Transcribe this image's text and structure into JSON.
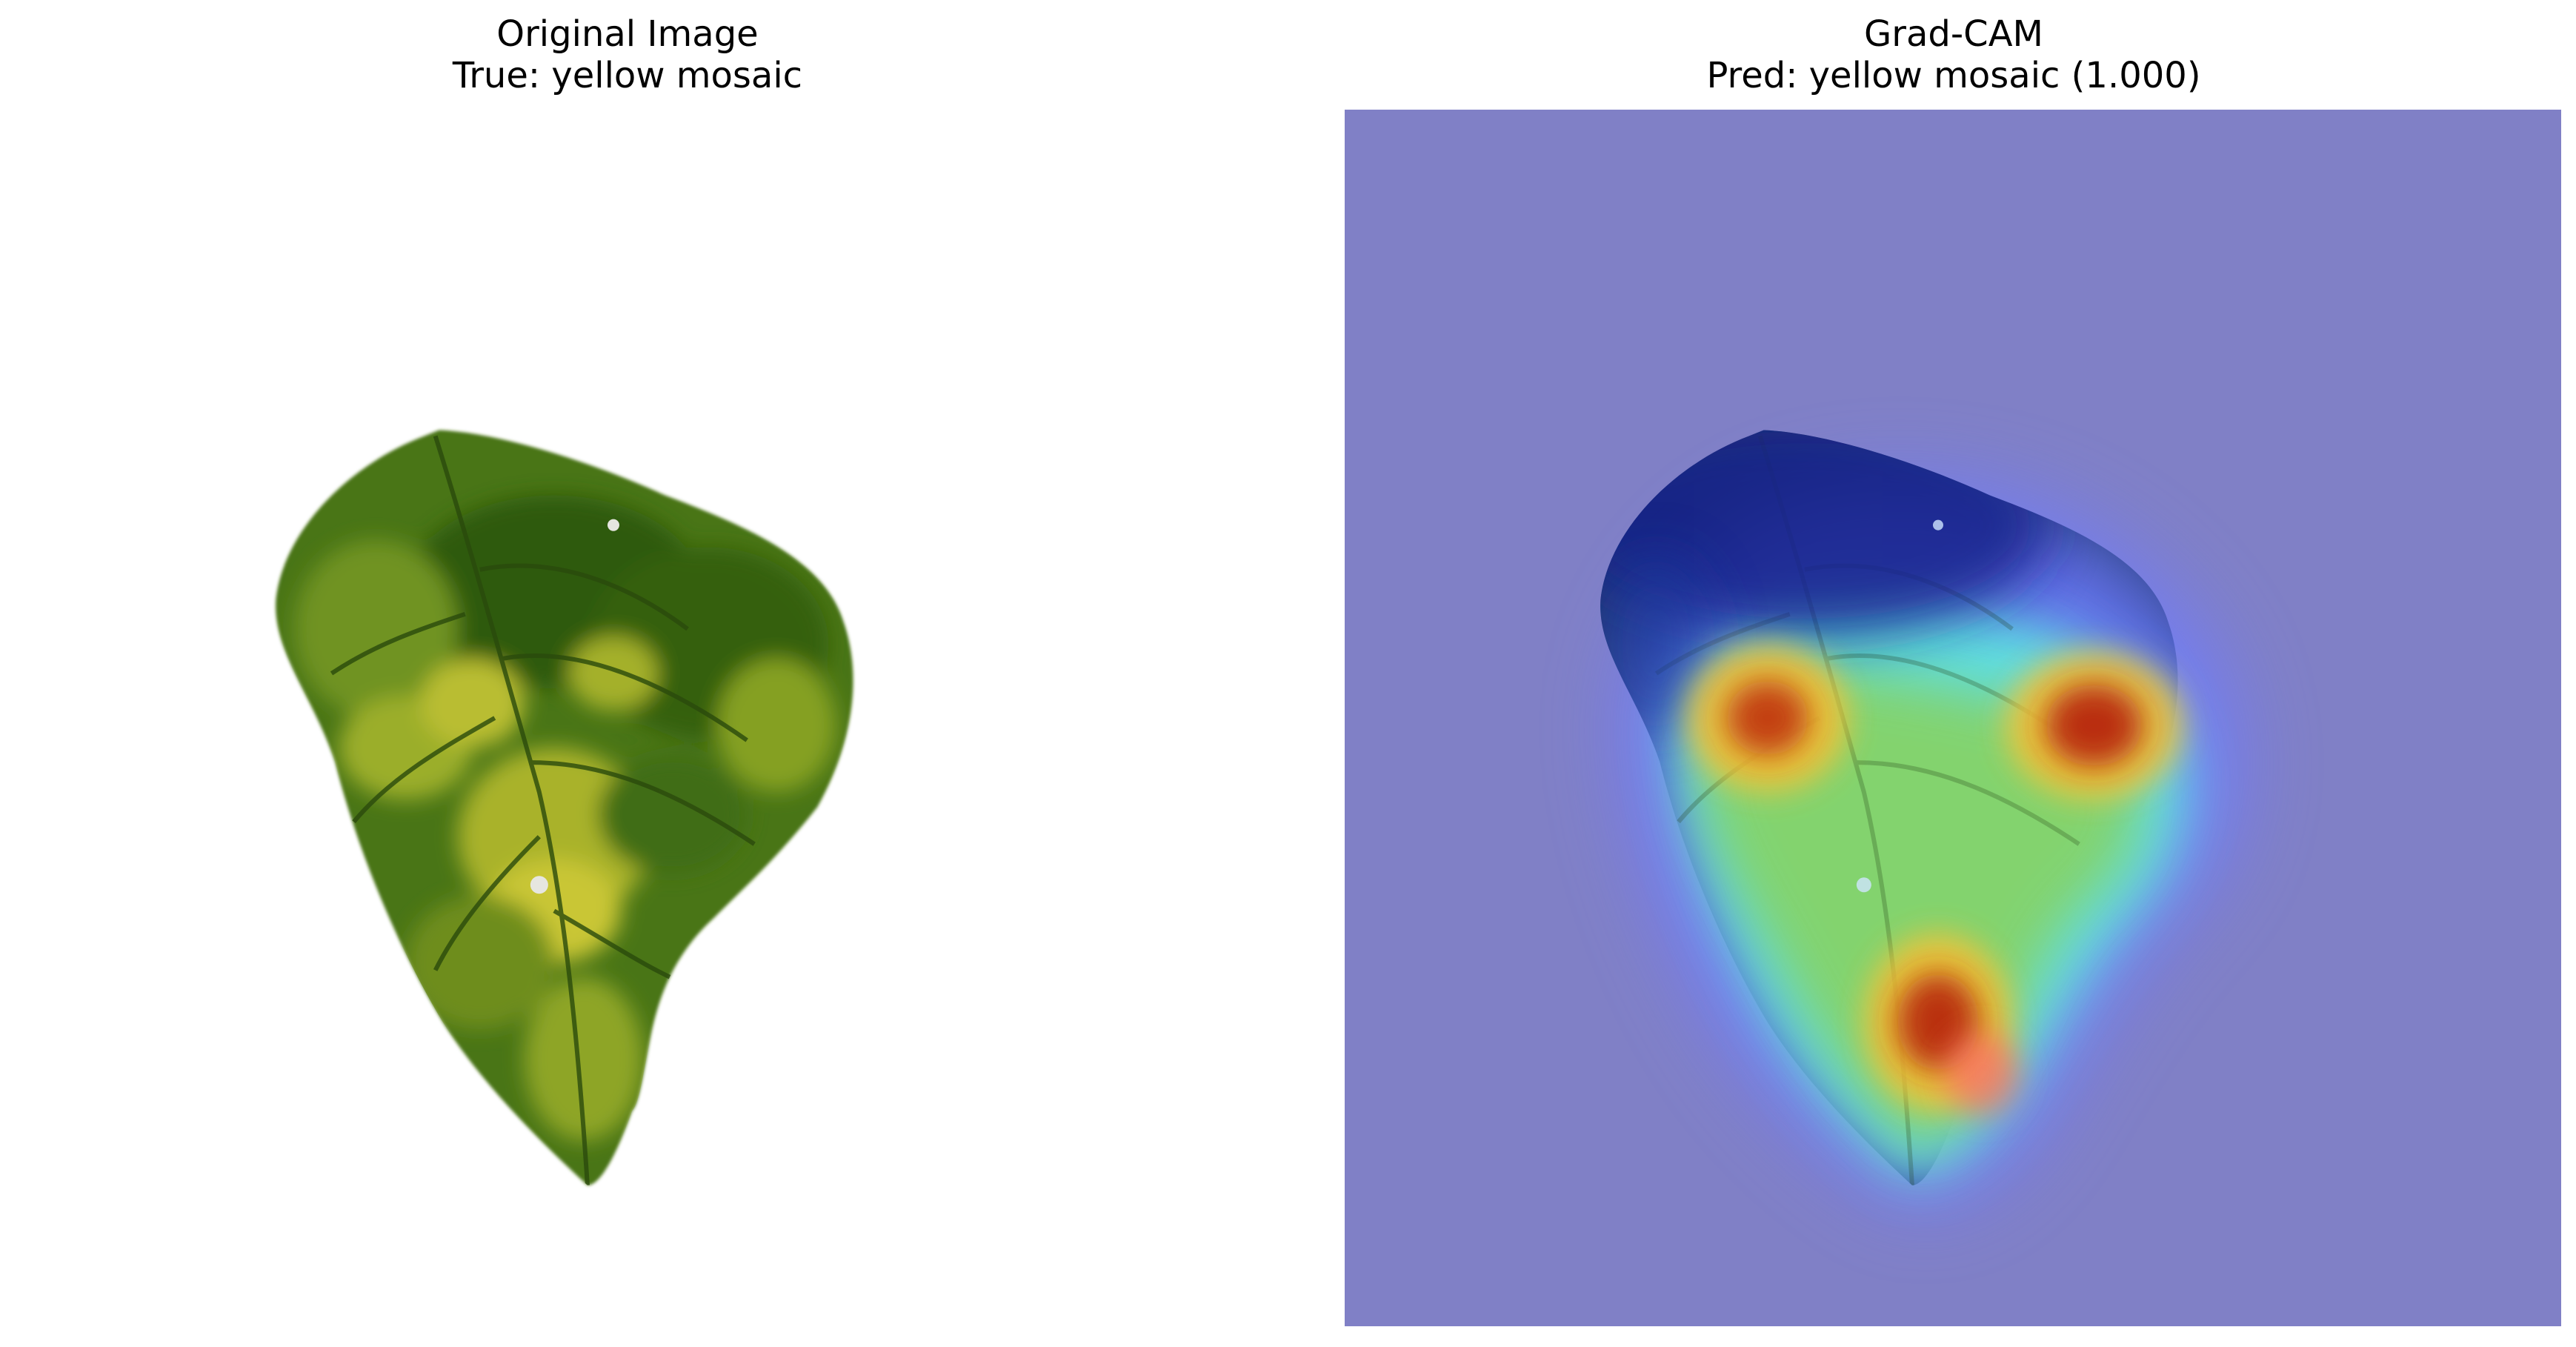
{
  "panels": [
    {
      "title_line1": "Original Image",
      "title_line2": "True: yellow mosaic"
    },
    {
      "title_line1": "Grad-CAM",
      "title_line2": "Pred: yellow mosaic (1.000)"
    }
  ],
  "colors": {
    "background": "#ffffff",
    "overlay_base": "#8080c6",
    "leaf_dark": "#2f5a10",
    "leaf_mid": "#5f8a1a",
    "leaf_yellow": "#c8c832",
    "heat_red": "#c01a0a",
    "heat_yellow": "#ffee44",
    "heat_cyan": "#7fffee"
  }
}
